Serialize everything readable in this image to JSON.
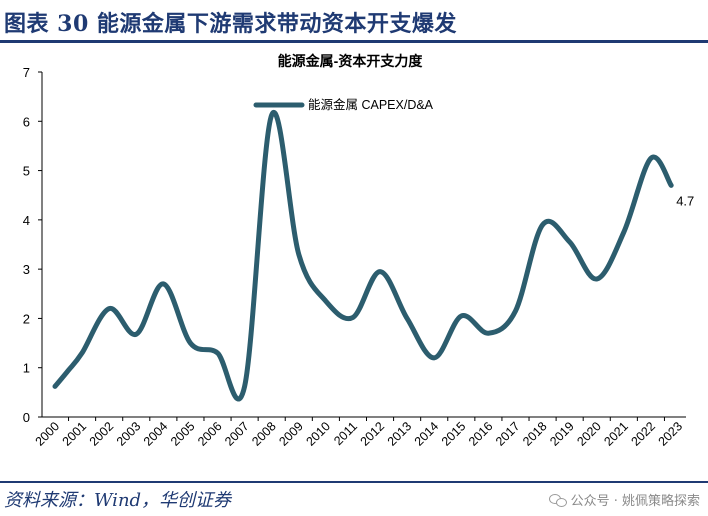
{
  "figure": {
    "title": "图表 30  能源金属下游需求带动资本开支爆发",
    "source": "资料来源：Wind，华创证券",
    "watermark": "公众号 · 姚佩策略探索"
  },
  "colors": {
    "line": "#2c5d6e",
    "header": "#1f3a73",
    "axis": "#000000"
  },
  "chart_data": {
    "type": "line",
    "title": "能源金属-资本开支力度",
    "xlabel": "",
    "ylabel": "",
    "categories": [
      "2000",
      "2001",
      "2002",
      "2003",
      "2004",
      "2005",
      "2006",
      "2007",
      "2008",
      "2009",
      "2010",
      "2011",
      "2012",
      "2013",
      "2014",
      "2015",
      "2016",
      "2017",
      "2018",
      "2019",
      "2020",
      "2021",
      "2022",
      "2023"
    ],
    "series": [
      {
        "name": "能源金属 CAPEX/D&A",
        "x": [
          2000,
          2000.5,
          2001,
          2002,
          2003,
          2004,
          2005,
          2006,
          2007,
          2008,
          2009,
          2010,
          2011,
          2012,
          2013,
          2014,
          2015,
          2016,
          2017,
          2018,
          2019,
          2020,
          2021,
          2022,
          2022.75
        ],
        "values": [
          0.62,
          0.95,
          1.3,
          2.2,
          1.68,
          2.7,
          1.5,
          1.3,
          0.62,
          6.13,
          3.3,
          2.35,
          2.02,
          2.95,
          2.0,
          1.2,
          2.05,
          1.7,
          2.15,
          3.9,
          3.55,
          2.8,
          3.75,
          5.25,
          4.7
        ]
      }
    ],
    "end_label": "4.7",
    "ylim": [
      0,
      7
    ],
    "yticks": [
      0,
      1,
      2,
      3,
      4,
      5,
      6,
      7
    ],
    "grid": false,
    "legend_position": "top-left"
  }
}
